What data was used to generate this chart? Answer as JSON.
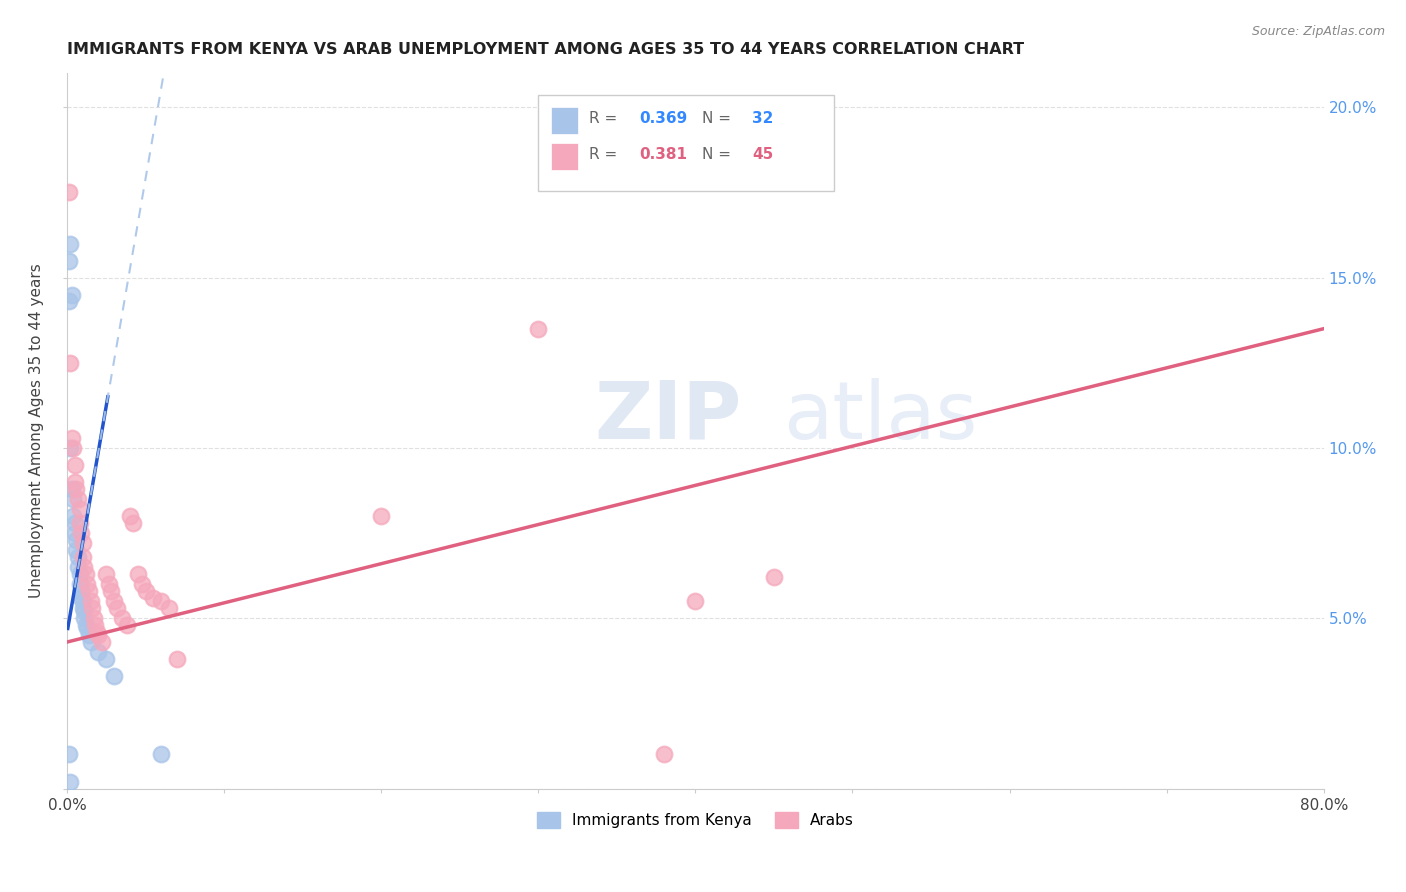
{
  "title": "IMMIGRANTS FROM KENYA VS ARAB UNEMPLOYMENT AMONG AGES 35 TO 44 YEARS CORRELATION CHART",
  "source": "Source: ZipAtlas.com",
  "ylabel": "Unemployment Among Ages 35 to 44 years",
  "xlim": [
    0.0,
    0.8
  ],
  "ylim": [
    0.0,
    0.21
  ],
  "kenya_color": "#a8c4e8",
  "arab_color": "#f5a8bc",
  "kenya_line_color": "#2255cc",
  "arab_line_color": "#e06080",
  "kenya_scatter": [
    [
      0.001,
      0.155
    ],
    [
      0.002,
      0.16
    ],
    [
      0.003,
      0.145
    ],
    [
      0.001,
      0.143
    ],
    [
      0.002,
      0.1
    ],
    [
      0.003,
      0.088
    ],
    [
      0.004,
      0.085
    ],
    [
      0.004,
      0.08
    ],
    [
      0.005,
      0.078
    ],
    [
      0.005,
      0.075
    ],
    [
      0.006,
      0.073
    ],
    [
      0.006,
      0.07
    ],
    [
      0.007,
      0.068
    ],
    [
      0.007,
      0.065
    ],
    [
      0.008,
      0.063
    ],
    [
      0.008,
      0.06
    ],
    [
      0.009,
      0.058
    ],
    [
      0.009,
      0.056
    ],
    [
      0.01,
      0.055
    ],
    [
      0.01,
      0.053
    ],
    [
      0.011,
      0.052
    ],
    [
      0.011,
      0.05
    ],
    [
      0.012,
      0.048
    ],
    [
      0.013,
      0.047
    ],
    [
      0.014,
      0.045
    ],
    [
      0.015,
      0.043
    ],
    [
      0.02,
      0.04
    ],
    [
      0.025,
      0.038
    ],
    [
      0.03,
      0.033
    ],
    [
      0.06,
      0.01
    ],
    [
      0.001,
      0.01
    ],
    [
      0.002,
      0.002
    ]
  ],
  "arab_scatter": [
    [
      0.001,
      0.175
    ],
    [
      0.002,
      0.125
    ],
    [
      0.003,
      0.103
    ],
    [
      0.004,
      0.1
    ],
    [
      0.005,
      0.095
    ],
    [
      0.005,
      0.09
    ],
    [
      0.006,
      0.088
    ],
    [
      0.007,
      0.085
    ],
    [
      0.008,
      0.082
    ],
    [
      0.008,
      0.078
    ],
    [
      0.009,
      0.075
    ],
    [
      0.01,
      0.072
    ],
    [
      0.01,
      0.068
    ],
    [
      0.011,
      0.065
    ],
    [
      0.012,
      0.063
    ],
    [
      0.013,
      0.06
    ],
    [
      0.014,
      0.058
    ],
    [
      0.015,
      0.055
    ],
    [
      0.016,
      0.053
    ],
    [
      0.017,
      0.05
    ],
    [
      0.018,
      0.048
    ],
    [
      0.019,
      0.046
    ],
    [
      0.02,
      0.045
    ],
    [
      0.022,
      0.043
    ],
    [
      0.025,
      0.063
    ],
    [
      0.027,
      0.06
    ],
    [
      0.028,
      0.058
    ],
    [
      0.03,
      0.055
    ],
    [
      0.032,
      0.053
    ],
    [
      0.035,
      0.05
    ],
    [
      0.038,
      0.048
    ],
    [
      0.04,
      0.08
    ],
    [
      0.042,
      0.078
    ],
    [
      0.045,
      0.063
    ],
    [
      0.048,
      0.06
    ],
    [
      0.05,
      0.058
    ],
    [
      0.055,
      0.056
    ],
    [
      0.06,
      0.055
    ],
    [
      0.065,
      0.053
    ],
    [
      0.07,
      0.038
    ],
    [
      0.2,
      0.08
    ],
    [
      0.3,
      0.135
    ],
    [
      0.38,
      0.01
    ],
    [
      0.4,
      0.055
    ],
    [
      0.45,
      0.062
    ]
  ],
  "watermark_zip": "ZIP",
  "watermark_atlas": "atlas",
  "background_color": "#ffffff",
  "grid_color": "#e0e0e0",
  "legend_r1": "R = ",
  "legend_v1": "0.369",
  "legend_n1": "N = ",
  "legend_nv1": "32",
  "legend_r2": "R = ",
  "legend_v2": "0.381",
  "legend_n2": "N = ",
  "legend_nv2": "45",
  "legend_label1": "Immigrants from Kenya",
  "legend_label2": "Arabs"
}
